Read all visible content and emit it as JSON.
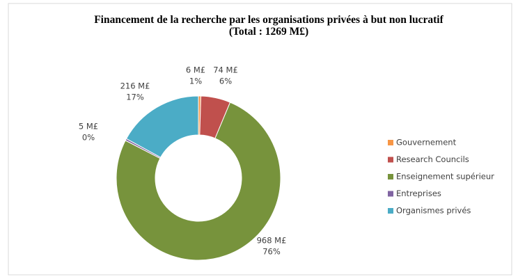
{
  "chart_data": {
    "type": "donut",
    "title": "Financement de la recherche par les organisations privées à but non lucratif",
    "subtitle": "(Total : 1269 M£)",
    "categories": [
      "Gouvernement",
      "Research Councils",
      "Enseignement supérieur",
      "Entreprises",
      "Organismes privés"
    ],
    "values": [
      6,
      74,
      968,
      5,
      216
    ],
    "value_labels": [
      "6 M£",
      "74 M£",
      "968 M£",
      "5 M£",
      "216 M£"
    ],
    "percent_labels": [
      "1%",
      "6%",
      "76%",
      "0%",
      "17%"
    ],
    "colors": [
      "#f79646",
      "#c0504d",
      "#77933c",
      "#8064a2",
      "#4bacc6"
    ],
    "legend": "right"
  }
}
